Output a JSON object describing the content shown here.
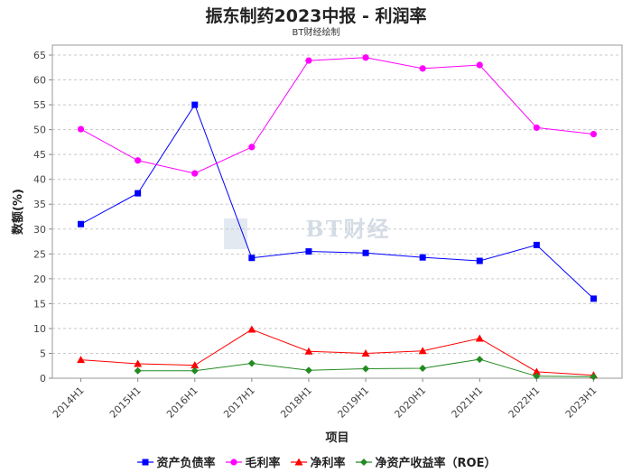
{
  "chart_data": {
    "type": "line",
    "title": "振东制药2023中报 - 利润率",
    "subtitle": "BT财经绘制",
    "xlabel": "项目",
    "ylabel": "数额(%)",
    "ylim": [
      0,
      67
    ],
    "yticks": [
      0,
      5,
      10,
      15,
      20,
      25,
      30,
      35,
      40,
      45,
      50,
      55,
      60,
      65
    ],
    "grid": true,
    "legend_position": "bottom",
    "categories": [
      "2014H1",
      "2015H1",
      "2016H1",
      "2017H1",
      "2018H1",
      "2019H1",
      "2020H1",
      "2021H1",
      "2022H1",
      "2023H1"
    ],
    "series": [
      {
        "name": "资产负债率",
        "color": "#0000ff",
        "marker": "square",
        "values": [
          31.0,
          37.2,
          55.0,
          24.2,
          25.5,
          25.2,
          24.3,
          23.6,
          26.8,
          16.0
        ]
      },
      {
        "name": "毛利率",
        "color": "#ff00ff",
        "marker": "circle",
        "values": [
          50.1,
          43.8,
          41.2,
          46.5,
          63.9,
          64.5,
          62.3,
          63.0,
          50.4,
          49.1
        ]
      },
      {
        "name": "净利率",
        "color": "#ff0000",
        "marker": "triangle",
        "values": [
          3.7,
          2.9,
          2.6,
          9.8,
          5.4,
          5.0,
          5.5,
          8.0,
          1.3,
          0.6
        ]
      },
      {
        "name": "净资产收益率（ROE）",
        "color": "#228b22",
        "marker": "diamond",
        "values": [
          null,
          1.5,
          1.5,
          3.0,
          1.6,
          1.9,
          2.0,
          3.8,
          0.4,
          0.3
        ]
      }
    ],
    "watermark": "BT财经"
  }
}
